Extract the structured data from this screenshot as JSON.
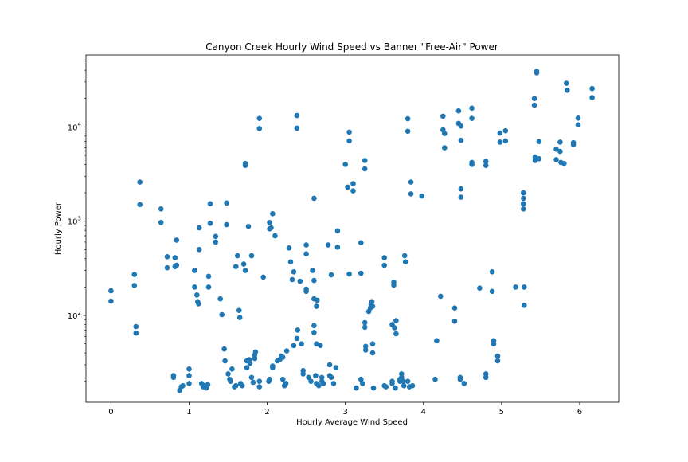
{
  "chart_data": {
    "type": "scatter",
    "title": "Canyon Creek Hourly Wind Speed vs Banner \"Free-Air\" Power",
    "xlabel": "Hourly Average Wind Speed",
    "ylabel": "Hourly Power",
    "xlim": [
      -0.32,
      6.5
    ],
    "ylim": [
      12,
      58000
    ],
    "yscale": "log",
    "grid": false,
    "marker_color": "#1f77b4",
    "x_ticks": [
      {
        "value": 0,
        "label": "0"
      },
      {
        "value": 1,
        "label": "1"
      },
      {
        "value": 2,
        "label": "2"
      },
      {
        "value": 3,
        "label": "3"
      },
      {
        "value": 4,
        "label": "4"
      },
      {
        "value": 5,
        "label": "5"
      },
      {
        "value": 6,
        "label": "6"
      }
    ],
    "y_major_ticks": [
      {
        "value": 100,
        "base": "10",
        "exp": "2"
      },
      {
        "value": 1000,
        "base": "10",
        "exp": "3"
      },
      {
        "value": 10000,
        "base": "10",
        "exp": "4"
      }
    ],
    "y_minor_ticks": [
      20,
      30,
      40,
      50,
      60,
      70,
      80,
      90,
      200,
      300,
      400,
      500,
      600,
      700,
      800,
      900,
      2000,
      3000,
      4000,
      5000,
      6000,
      7000,
      8000,
      9000,
      20000,
      30000,
      40000,
      50000
    ],
    "points": [
      [
        0.0,
        183
      ],
      [
        0.0,
        142
      ],
      [
        0.3,
        272
      ],
      [
        0.3,
        208
      ],
      [
        0.32,
        76
      ],
      [
        0.32,
        65
      ],
      [
        0.37,
        2600
      ],
      [
        0.37,
        1500
      ],
      [
        0.64,
        1350
      ],
      [
        0.64,
        970
      ],
      [
        0.72,
        420
      ],
      [
        0.72,
        320
      ],
      [
        0.8,
        23
      ],
      [
        0.8,
        22
      ],
      [
        0.82,
        410
      ],
      [
        0.82,
        330
      ],
      [
        0.84,
        630
      ],
      [
        0.84,
        340
      ],
      [
        0.88,
        16
      ],
      [
        0.9,
        17.5
      ],
      [
        0.92,
        18
      ],
      [
        1.0,
        27
      ],
      [
        1.0,
        23
      ],
      [
        1.0,
        19
      ],
      [
        1.07,
        300
      ],
      [
        1.07,
        200
      ],
      [
        1.1,
        165
      ],
      [
        1.11,
        140
      ],
      [
        1.12,
        133
      ],
      [
        1.13,
        850
      ],
      [
        1.13,
        500
      ],
      [
        1.16,
        19
      ],
      [
        1.18,
        17.5
      ],
      [
        1.2,
        18
      ],
      [
        1.22,
        17
      ],
      [
        1.24,
        18.5
      ],
      [
        1.25,
        260
      ],
      [
        1.25,
        200
      ],
      [
        1.27,
        1530
      ],
      [
        1.27,
        950
      ],
      [
        1.34,
        690
      ],
      [
        1.34,
        600
      ],
      [
        1.4,
        150
      ],
      [
        1.42,
        102
      ],
      [
        1.45,
        44
      ],
      [
        1.46,
        33
      ],
      [
        1.48,
        1560
      ],
      [
        1.48,
        920
      ],
      [
        1.5,
        24
      ],
      [
        1.52,
        21
      ],
      [
        1.53,
        20
      ],
      [
        1.55,
        27
      ],
      [
        1.58,
        17.5
      ],
      [
        1.6,
        18
      ],
      [
        1.6,
        330
      ],
      [
        1.62,
        430
      ],
      [
        1.64,
        113
      ],
      [
        1.65,
        95
      ],
      [
        1.66,
        19
      ],
      [
        1.68,
        18
      ],
      [
        1.7,
        350
      ],
      [
        1.72,
        300
      ],
      [
        1.72,
        4100
      ],
      [
        1.72,
        3900
      ],
      [
        1.74,
        33
      ],
      [
        1.74,
        28
      ],
      [
        1.76,
        880
      ],
      [
        1.77,
        34
      ],
      [
        1.78,
        31
      ],
      [
        1.8,
        430
      ],
      [
        1.8,
        22
      ],
      [
        1.82,
        19.5
      ],
      [
        1.84,
        35
      ],
      [
        1.84,
        38
      ],
      [
        1.85,
        41
      ],
      [
        1.9,
        20
      ],
      [
        1.9,
        17.5
      ],
      [
        1.9,
        12300
      ],
      [
        1.9,
        9600
      ],
      [
        1.95,
        255
      ],
      [
        2.02,
        20
      ],
      [
        2.03,
        21
      ],
      [
        2.03,
        830
      ],
      [
        2.03,
        970
      ],
      [
        2.05,
        850
      ],
      [
        2.07,
        28
      ],
      [
        2.07,
        29
      ],
      [
        2.07,
        1200
      ],
      [
        2.1,
        700
      ],
      [
        2.13,
        33
      ],
      [
        2.16,
        34
      ],
      [
        2.18,
        37
      ],
      [
        2.2,
        36
      ],
      [
        2.2,
        21
      ],
      [
        2.22,
        18
      ],
      [
        2.24,
        19
      ],
      [
        2.25,
        42
      ],
      [
        2.28,
        520
      ],
      [
        2.3,
        370
      ],
      [
        2.32,
        240
      ],
      [
        2.34,
        48
      ],
      [
        2.34,
        290
      ],
      [
        2.38,
        13200
      ],
      [
        2.38,
        9700
      ],
      [
        2.38,
        57
      ],
      [
        2.39,
        70
      ],
      [
        2.42,
        230
      ],
      [
        2.44,
        50
      ],
      [
        2.46,
        26
      ],
      [
        2.46,
        24
      ],
      [
        2.5,
        560
      ],
      [
        2.5,
        450
      ],
      [
        2.5,
        180
      ],
      [
        2.5,
        190
      ],
      [
        2.53,
        22
      ],
      [
        2.56,
        20
      ],
      [
        2.58,
        300
      ],
      [
        2.6,
        1750
      ],
      [
        2.6,
        78
      ],
      [
        2.6,
        66
      ],
      [
        2.6,
        235
      ],
      [
        2.6,
        150
      ],
      [
        2.62,
        23
      ],
      [
        2.63,
        19
      ],
      [
        2.63,
        50
      ],
      [
        2.63,
        125
      ],
      [
        2.64,
        145
      ],
      [
        2.66,
        18
      ],
      [
        2.68,
        48
      ],
      [
        2.7,
        22
      ],
      [
        2.7,
        20
      ],
      [
        2.72,
        19
      ],
      [
        2.78,
        560
      ],
      [
        2.8,
        30
      ],
      [
        2.8,
        23
      ],
      [
        2.82,
        22
      ],
      [
        2.82,
        270
      ],
      [
        2.85,
        19
      ],
      [
        2.88,
        28
      ],
      [
        2.9,
        790
      ],
      [
        2.9,
        530
      ],
      [
        3.0,
        4000
      ],
      [
        3.03,
        2300
      ],
      [
        3.05,
        8800
      ],
      [
        3.05,
        7100
      ],
      [
        3.05,
        275
      ],
      [
        3.1,
        2500
      ],
      [
        3.1,
        2100
      ],
      [
        3.14,
        17
      ],
      [
        3.2,
        590
      ],
      [
        3.2,
        280
      ],
      [
        3.2,
        21
      ],
      [
        3.22,
        19
      ],
      [
        3.25,
        4400
      ],
      [
        3.25,
        3600
      ],
      [
        3.25,
        84
      ],
      [
        3.25,
        75
      ],
      [
        3.26,
        47
      ],
      [
        3.26,
        43
      ],
      [
        3.3,
        110
      ],
      [
        3.32,
        120
      ],
      [
        3.33,
        130
      ],
      [
        3.34,
        140
      ],
      [
        3.35,
        125
      ],
      [
        3.35,
        50
      ],
      [
        3.35,
        40
      ],
      [
        3.36,
        17
      ],
      [
        3.5,
        410
      ],
      [
        3.5,
        340
      ],
      [
        3.5,
        18
      ],
      [
        3.52,
        17.5
      ],
      [
        3.6,
        19
      ],
      [
        3.6,
        20
      ],
      [
        3.6,
        80
      ],
      [
        3.62,
        210
      ],
      [
        3.62,
        225
      ],
      [
        3.63,
        74
      ],
      [
        3.64,
        17
      ],
      [
        3.65,
        64
      ],
      [
        3.65,
        88
      ],
      [
        3.7,
        20
      ],
      [
        3.7,
        21
      ],
      [
        3.72,
        22
      ],
      [
        3.72,
        24
      ],
      [
        3.74,
        20
      ],
      [
        3.75,
        18
      ],
      [
        3.76,
        430
      ],
      [
        3.77,
        370
      ],
      [
        3.8,
        20
      ],
      [
        3.8,
        12200
      ],
      [
        3.8,
        9000
      ],
      [
        3.82,
        17.5
      ],
      [
        3.84,
        1950
      ],
      [
        3.84,
        2600
      ],
      [
        3.86,
        18
      ],
      [
        3.98,
        1850
      ],
      [
        4.15,
        21
      ],
      [
        4.17,
        54
      ],
      [
        4.22,
        160
      ],
      [
        4.25,
        13000
      ],
      [
        4.25,
        9300
      ],
      [
        4.27,
        6000
      ],
      [
        4.27,
        8500
      ],
      [
        4.4,
        120
      ],
      [
        4.4,
        87
      ],
      [
        4.45,
        14800
      ],
      [
        4.45,
        10900
      ],
      [
        4.47,
        22
      ],
      [
        4.47,
        21
      ],
      [
        4.48,
        10200
      ],
      [
        4.48,
        7200
      ],
      [
        4.48,
        2200
      ],
      [
        4.48,
        1800
      ],
      [
        4.52,
        19
      ],
      [
        4.62,
        15800
      ],
      [
        4.62,
        12300
      ],
      [
        4.62,
        4200
      ],
      [
        4.62,
        4000
      ],
      [
        4.72,
        195
      ],
      [
        4.8,
        4300
      ],
      [
        4.8,
        3900
      ],
      [
        4.8,
        24
      ],
      [
        4.8,
        22
      ],
      [
        4.88,
        290
      ],
      [
        4.88,
        180
      ],
      [
        4.9,
        54
      ],
      [
        4.9,
        50
      ],
      [
        4.95,
        37
      ],
      [
        4.95,
        33
      ],
      [
        4.98,
        8600
      ],
      [
        4.98,
        6900
      ],
      [
        5.05,
        9100
      ],
      [
        5.05,
        7100
      ],
      [
        5.18,
        200
      ],
      [
        5.28,
        2000
      ],
      [
        5.28,
        1750
      ],
      [
        5.28,
        1530
      ],
      [
        5.28,
        1350
      ],
      [
        5.29,
        200
      ],
      [
        5.29,
        128
      ],
      [
        5.42,
        20000
      ],
      [
        5.42,
        17000
      ],
      [
        5.43,
        4800
      ],
      [
        5.43,
        4400
      ],
      [
        5.45,
        39000
      ],
      [
        5.45,
        37500
      ],
      [
        5.48,
        4600
      ],
      [
        5.48,
        7000
      ],
      [
        5.7,
        5800
      ],
      [
        5.7,
        4500
      ],
      [
        5.75,
        5500
      ],
      [
        5.75,
        6900
      ],
      [
        5.76,
        4200
      ],
      [
        5.8,
        4100
      ],
      [
        5.83,
        29000
      ],
      [
        5.84,
        24500
      ],
      [
        5.92,
        6800
      ],
      [
        5.92,
        6500
      ],
      [
        5.98,
        12400
      ],
      [
        5.98,
        10500
      ],
      [
        6.16,
        25500
      ],
      [
        6.16,
        20500
      ]
    ]
  }
}
